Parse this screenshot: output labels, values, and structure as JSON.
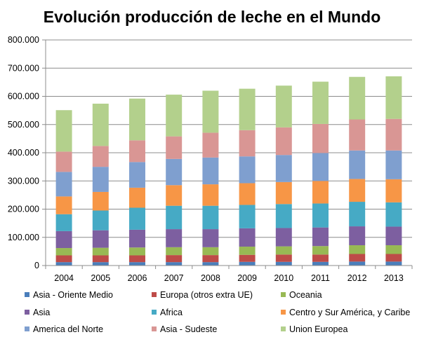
{
  "chart_data": {
    "type": "bar",
    "stacked": true,
    "title": "Evolución producción de leche en el Mundo",
    "xlabel": "",
    "ylabel": "",
    "ylim": [
      0,
      800000
    ],
    "yticks": [
      "0",
      "100.000",
      "200.000",
      "300.000",
      "400.000",
      "500.000",
      "600.000",
      "700.000",
      "800.000"
    ],
    "categories": [
      "2004",
      "2005",
      "2006",
      "2007",
      "2008",
      "2009",
      "2010",
      "2011",
      "2012",
      "2013"
    ],
    "grid": true,
    "legend_position": "bottom",
    "series": [
      {
        "name": "Asia - Oriente Medio",
        "color": "#4a7ebb",
        "values": [
          12000,
          12000,
          12000,
          12000,
          12000,
          13000,
          13000,
          13000,
          14000,
          14000
        ]
      },
      {
        "name": "Europa (otros extra UE)",
        "color": "#be4b48",
        "values": [
          24000,
          24000,
          24000,
          25000,
          25000,
          25000,
          26000,
          26000,
          27000,
          27000
        ]
      },
      {
        "name": "Oceania",
        "color": "#98b954",
        "values": [
          26000,
          27000,
          28000,
          28000,
          28000,
          29000,
          29000,
          30000,
          31000,
          31000
        ]
      },
      {
        "name": "Asia",
        "color": "#7d5fa0",
        "values": [
          60000,
          62000,
          63000,
          64000,
          64000,
          65000,
          65000,
          66000,
          67000,
          66000
        ]
      },
      {
        "name": "Africa",
        "color": "#46aac5",
        "values": [
          60000,
          70000,
          78000,
          83000,
          83000,
          83000,
          85000,
          85000,
          87000,
          86000
        ]
      },
      {
        "name": "Centro y Sur América, y Caribe",
        "color": "#f79646",
        "values": [
          63000,
          66000,
          71000,
          73000,
          76000,
          77000,
          78000,
          80000,
          81000,
          82000
        ]
      },
      {
        "name": "America del Norte",
        "color": "#7f9fcf",
        "values": [
          87000,
          89000,
          91000,
          93000,
          95000,
          95000,
          96000,
          99000,
          101000,
          102000
        ]
      },
      {
        "name": "Asia - Sudeste",
        "color": "#d99694",
        "values": [
          72000,
          74000,
          77000,
          80000,
          88000,
          93000,
          98000,
          103000,
          110000,
          112000
        ]
      },
      {
        "name": "Union Europea",
        "color": "#b3d08c",
        "values": [
          147000,
          150000,
          148000,
          148000,
          149000,
          147000,
          148000,
          150000,
          151000,
          151000
        ]
      }
    ]
  }
}
